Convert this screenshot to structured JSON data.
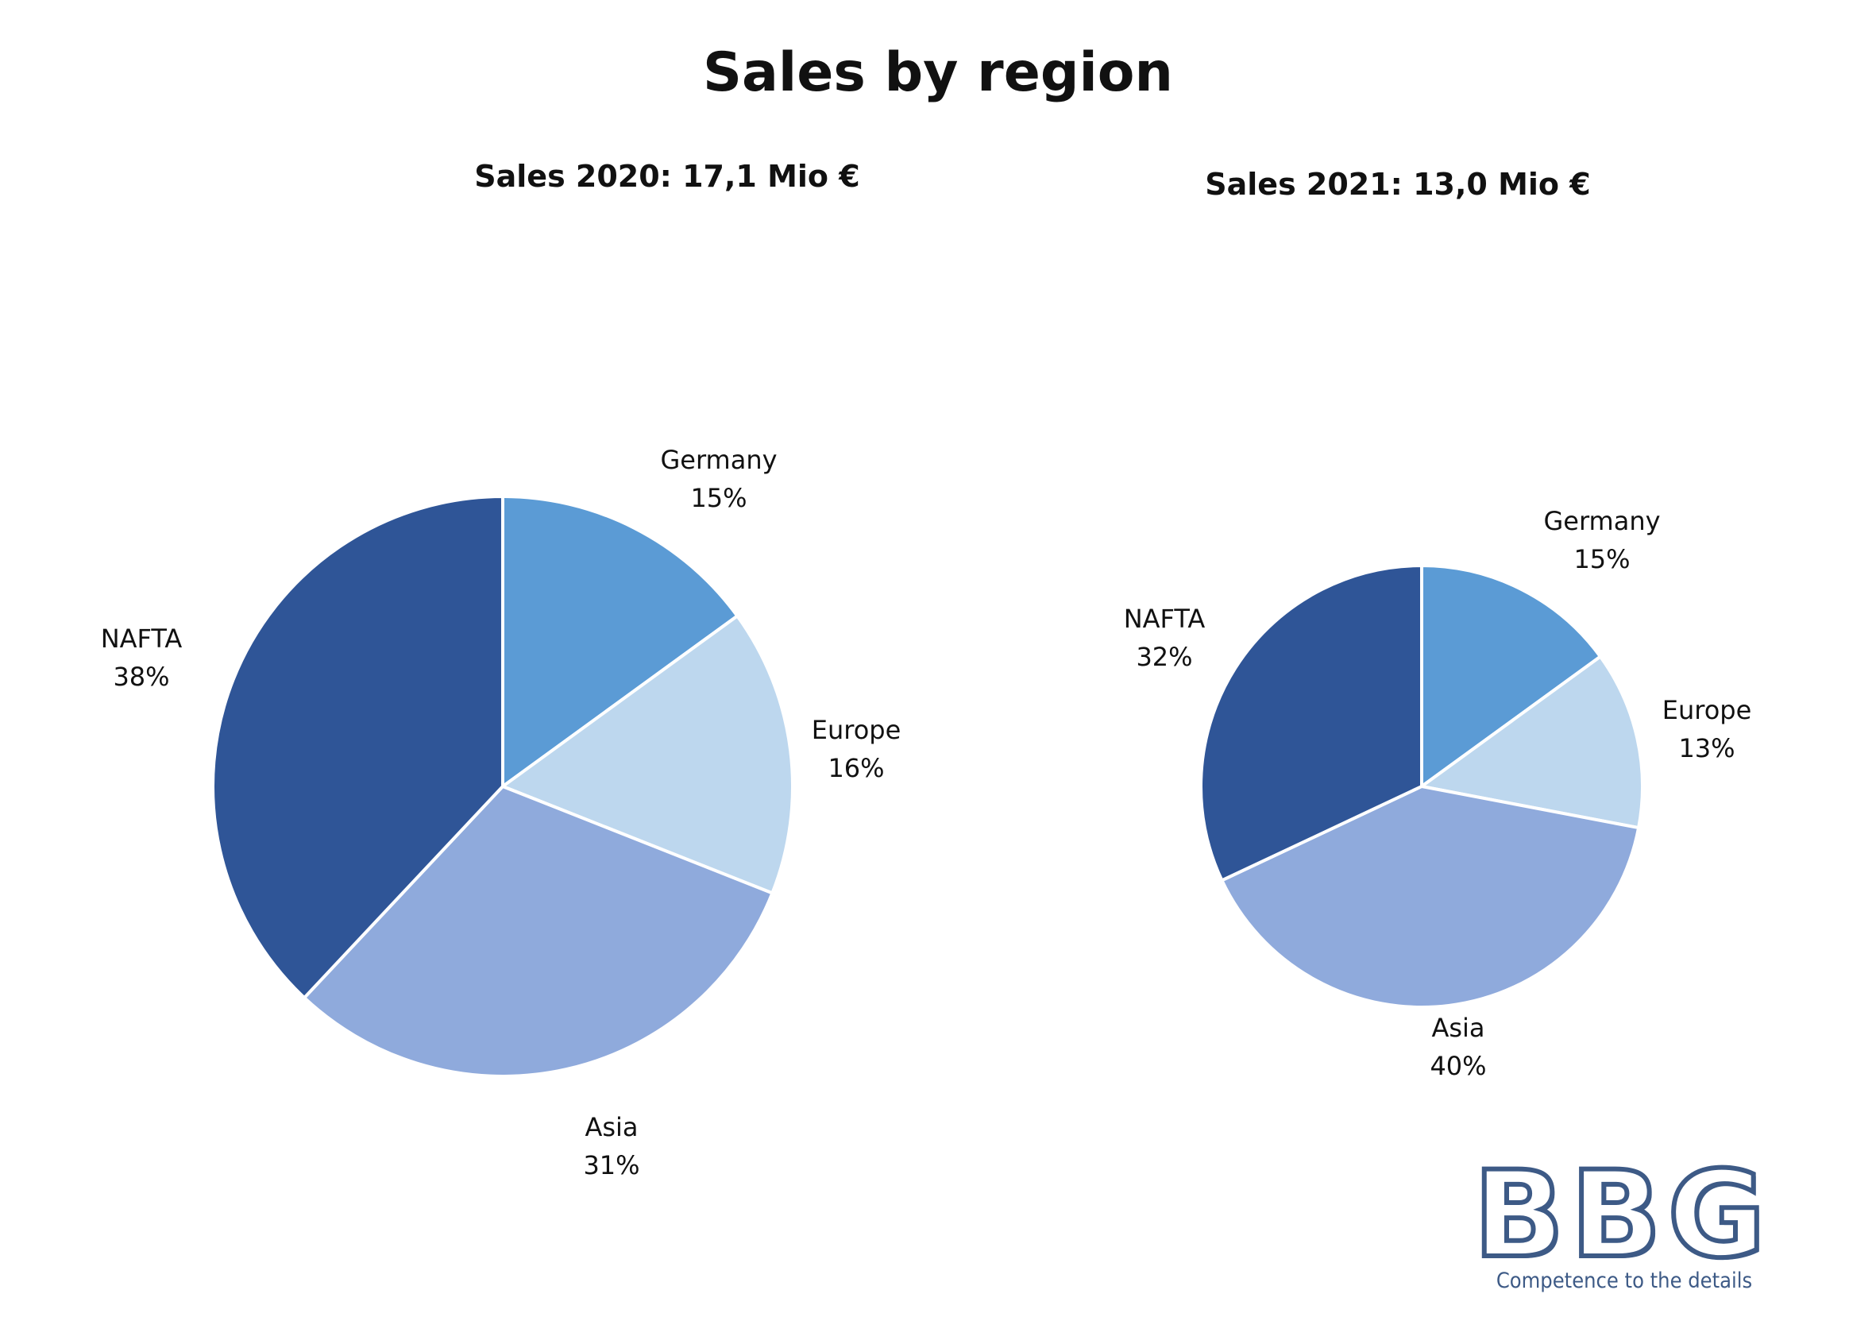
{
  "title": "Sales by region",
  "chart_data": [
    {
      "type": "pie",
      "title": "Sales 2020: 17,1 Mio €",
      "slices": [
        {
          "label": "Germany",
          "value": 15,
          "value_label": "15%",
          "color": "#5b9bd5"
        },
        {
          "label": "Europe",
          "value": 16,
          "value_label": "16%",
          "color": "#bdd7ee"
        },
        {
          "label": "Asia",
          "value": 31,
          "value_label": "31%",
          "color": "#8faadc"
        },
        {
          "label": "NAFTA",
          "value": 38,
          "value_label": "38%",
          "color": "#2f5597"
        }
      ]
    },
    {
      "type": "pie",
      "title": "Sales 2021: 13,0 Mio €",
      "slices": [
        {
          "label": "Germany",
          "value": 15,
          "value_label": "15%",
          "color": "#5b9bd5"
        },
        {
          "label": "Europe",
          "value": 13,
          "value_label": "13%",
          "color": "#bdd7ee"
        },
        {
          "label": "Asia",
          "value": 40,
          "value_label": "40%",
          "color": "#8faadc"
        },
        {
          "label": "NAFTA",
          "value": 32,
          "value_label": "32%",
          "color": "#2f5597"
        }
      ]
    }
  ],
  "logo": {
    "text": "BBG",
    "tagline": "Competence to the details"
  }
}
